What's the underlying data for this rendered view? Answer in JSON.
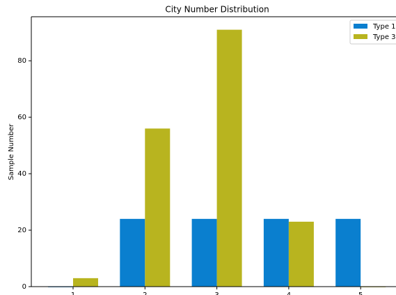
{
  "chart_data": {
    "type": "bar",
    "title": "City Number Distribution",
    "ylabel": "Sample Number",
    "categories": [
      "1",
      "2",
      "3",
      "4",
      "5"
    ],
    "series": [
      {
        "name": "Type 1",
        "color": "#0a7fcf",
        "values": [
          0,
          24,
          24,
          24,
          24
        ]
      },
      {
        "name": "Type 3",
        "color": "#b8b41f",
        "values": [
          3,
          56,
          91,
          23,
          0
        ]
      }
    ],
    "ylim": [
      0,
      95.6
    ],
    "yticks": [
      0,
      20,
      40,
      60,
      80
    ],
    "grid": false,
    "legend": "upper right"
  }
}
